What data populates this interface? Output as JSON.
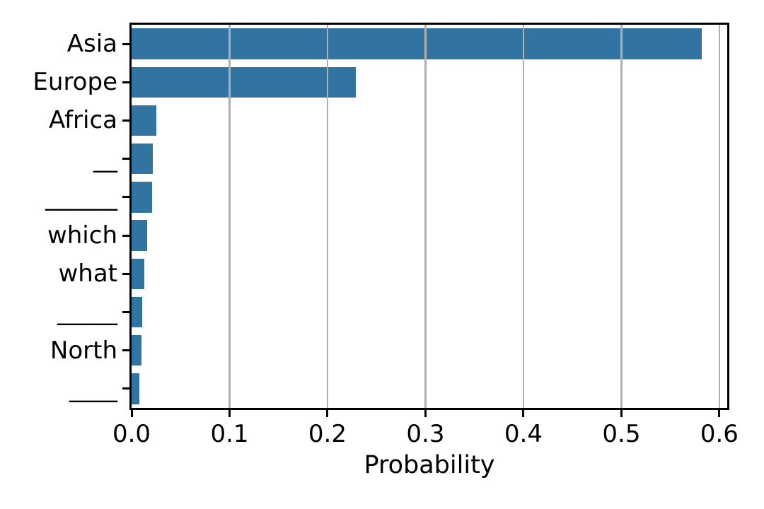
{
  "chart_data": {
    "type": "bar",
    "orientation": "horizontal",
    "title": "",
    "xlabel": "Probability",
    "ylabel": "",
    "categories": [
      "Asia",
      "Europe",
      "Africa",
      "__",
      "______",
      "which",
      "what",
      "_____",
      "North",
      "____"
    ],
    "values": [
      0.582,
      0.229,
      0.025,
      0.022,
      0.021,
      0.016,
      0.013,
      0.011,
      0.01,
      0.008
    ],
    "xlim": [
      0,
      0.608
    ],
    "xticks": [
      0,
      0.1,
      0.2,
      0.3,
      0.4,
      0.5,
      0.6
    ],
    "xtick_labels": [
      "0.0",
      "0.1",
      "0.2",
      "0.3",
      "0.4",
      "0.5",
      "0.6"
    ],
    "grid": "vertical-only",
    "grid_above_bars": true,
    "bar_fraction_of_row": 0.8,
    "legend": null,
    "colors": {
      "bar": "#3274a1",
      "grid": "#b0b0b0",
      "spine": "#000000",
      "text": "#000000",
      "background": "#ffffff"
    }
  }
}
